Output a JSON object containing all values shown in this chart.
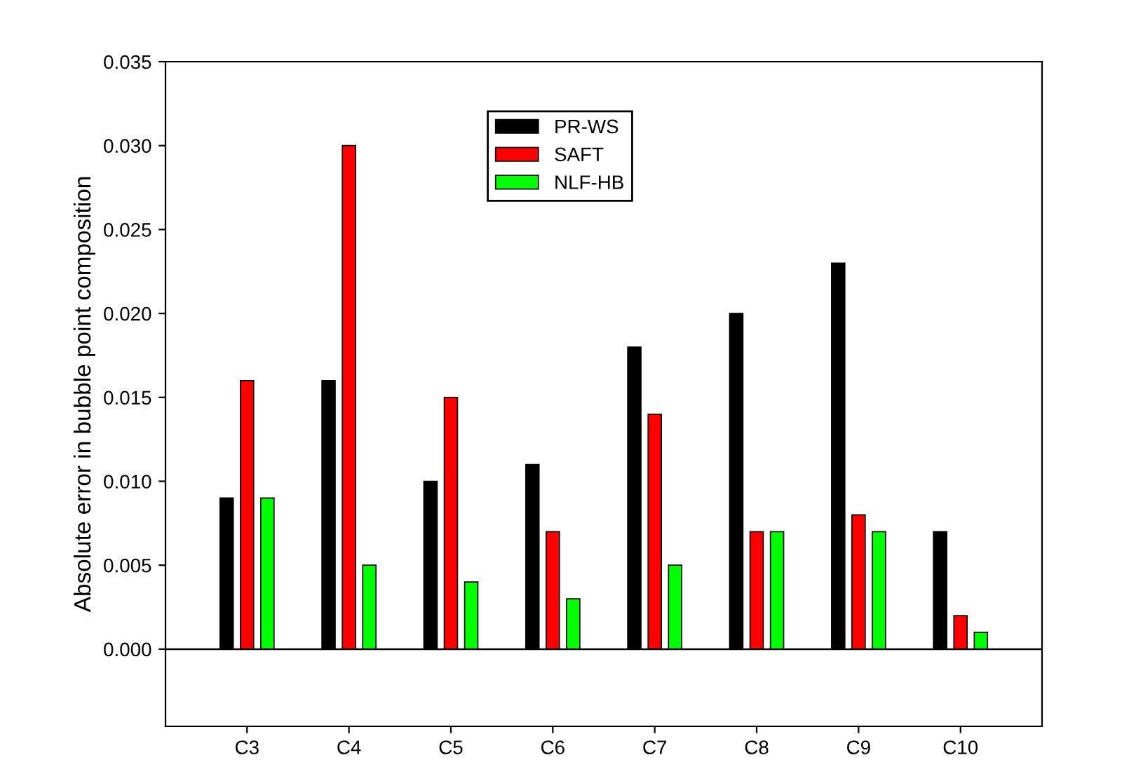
{
  "chart_data": {
    "type": "bar",
    "ylabel": "Absolute error in bubble point composition",
    "categories": [
      "C3",
      "C4",
      "C5",
      "C6",
      "C7",
      "C8",
      "C9",
      "C10"
    ],
    "series": [
      {
        "name": "PR-WS",
        "color": "#000000",
        "values": [
          0.009,
          0.016,
          0.01,
          0.011,
          0.018,
          0.02,
          0.023,
          0.007
        ]
      },
      {
        "name": "SAFT",
        "color": "#ff0000",
        "values": [
          0.016,
          0.03,
          0.015,
          0.007,
          0.014,
          0.007,
          0.008,
          0.002
        ]
      },
      {
        "name": "NLF-HB",
        "color": "#00ff00",
        "values": [
          0.009,
          0.005,
          0.004,
          0.003,
          0.005,
          0.007,
          0.007,
          0.001
        ]
      }
    ],
    "ylim": [
      -0.0046,
      0.035
    ],
    "yticks": [
      {
        "value": 0,
        "label": "0.000"
      },
      {
        "value": 0.005,
        "label": "0.005"
      },
      {
        "value": 0.01,
        "label": "0.010"
      },
      {
        "value": 0.015,
        "label": "0.015"
      },
      {
        "value": 0.02,
        "label": "0.020"
      },
      {
        "value": 0.025,
        "label": "0.025"
      },
      {
        "value": 0.03,
        "label": "0.030"
      },
      {
        "value": 0.035,
        "label": "0.035"
      }
    ],
    "ref_lines": [
      {
        "axis": "y",
        "value": 0,
        "color": "#000000"
      }
    ],
    "grid": false,
    "legend": "top"
  }
}
